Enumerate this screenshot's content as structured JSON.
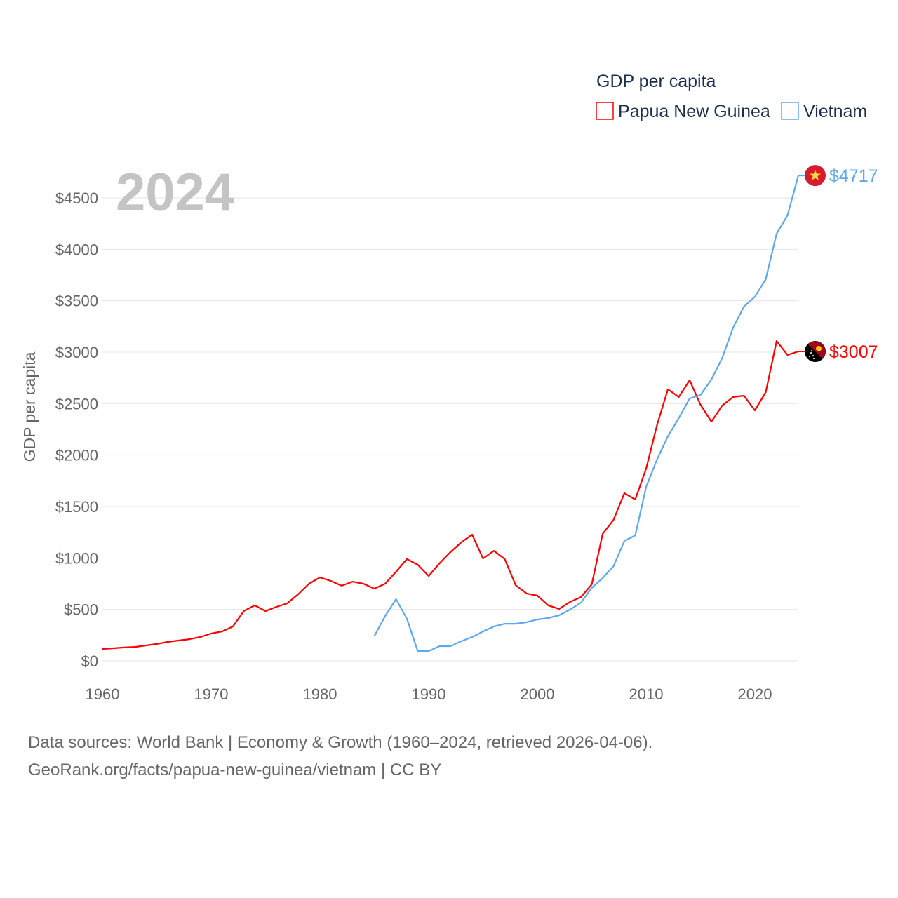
{
  "chart_data": {
    "type": "line",
    "year_label": "2024",
    "ylabel": "GDP per capita",
    "xlabel": "",
    "legend": {
      "title": "GDP per capita",
      "placement": "top-right"
    },
    "xlim": [
      1960,
      2024
    ],
    "ylim": [
      0,
      4500
    ],
    "grid": true,
    "x_ticks": [
      1960,
      1970,
      1980,
      1990,
      2000,
      2010,
      2020
    ],
    "x_tick_labels": [
      "1960",
      "1970",
      "1980",
      "1990",
      "2000",
      "2010",
      "2020"
    ],
    "y_ticks": [
      0,
      500,
      1000,
      1500,
      2000,
      2500,
      3000,
      3500,
      4000,
      4500
    ],
    "y_tick_labels": [
      "$0",
      "$500",
      "$1000",
      "$1500",
      "$2000",
      "$2500",
      "$3000",
      "$3500",
      "$4000",
      "$4500"
    ],
    "series": [
      {
        "name": "Papua New Guinea",
        "color": "#ff0000",
        "end_label": "$3007",
        "flag": "papua-new-guinea",
        "start_year": 1960,
        "values": [
          116,
          123,
          130,
          136,
          150,
          164,
          184,
          198,
          211,
          232,
          266,
          286,
          334,
          484,
          539,
          484,
          525,
          559,
          648,
          750,
          811,
          777,
          730,
          770,
          750,
          702,
          750,
          866,
          989,
          934,
          825,
          948,
          1057,
          1152,
          1227,
          995,
          1070,
          989,
          736,
          655,
          634,
          539,
          505,
          573,
          620,
          743,
          1234,
          1370,
          1630,
          1568,
          1868,
          2291,
          2639,
          2564,
          2727,
          2489,
          2325,
          2482,
          2564,
          2577,
          2434,
          2611,
          3109,
          2973,
          3007
        ]
      },
      {
        "name": "Vietnam",
        "color": "#5ea8ef",
        "end_label": "$4717",
        "flag": "vietnam",
        "start_year": 1985,
        "values": [
          239,
          436,
          600,
          409,
          95,
          95,
          143,
          143,
          191,
          232,
          286,
          334,
          361,
          361,
          375,
          402,
          416,
          443,
          498,
          566,
          709,
          805,
          920,
          1166,
          1220,
          1691,
          1957,
          2182,
          2359,
          2550,
          2584,
          2734,
          2945,
          3239,
          3443,
          3539,
          3709,
          4152,
          4329,
          4717
        ]
      }
    ]
  },
  "footer": {
    "line1": "Data sources: World Bank | Economy & Growth (1960–2024, retrieved 2026-04-06).",
    "line2": "GeoRank.org/facts/papua-new-guinea/vietnam | CC BY"
  }
}
